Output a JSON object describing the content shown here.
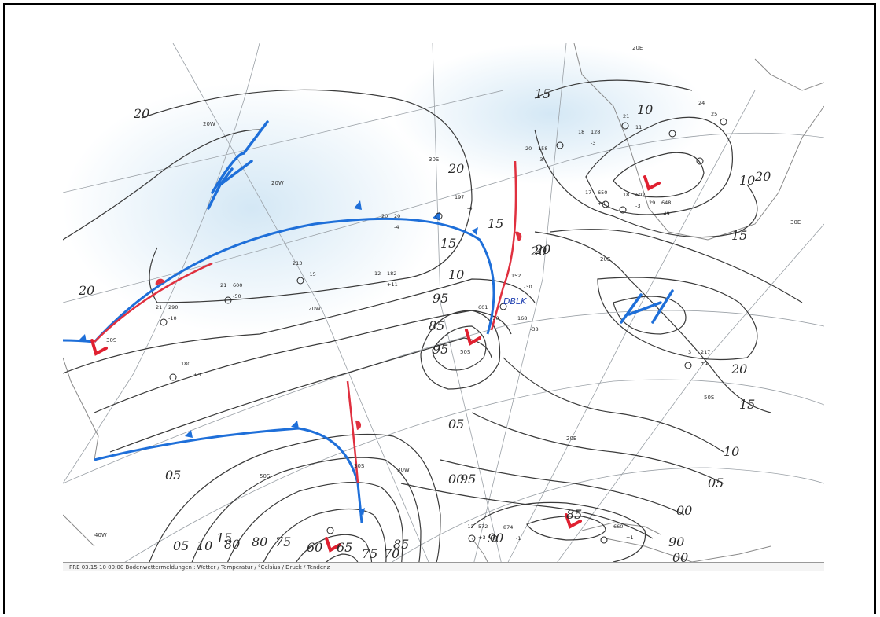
{
  "map": {
    "footer_text": "PRE 03.15 10 00:00 Bodenwettermeldungen : Wetter / Temperatur / °Celsius / Druck / Tendenz",
    "colors": {
      "cold_front": "#1e6fd9",
      "warm_front": "#e0303f",
      "low_marker": "#e02030",
      "high_marker": "#1e6fd9",
      "isobar": "#3a3a3a",
      "grid": "#9aa0a6",
      "land": "#8a8a8a",
      "shade": "#d8ebf6"
    },
    "grid_labels": [
      "20W",
      "20W",
      "20W",
      "30W",
      "40W",
      "30S",
      "30S",
      "30S",
      "50S",
      "50S",
      "50S",
      "20E",
      "20E",
      "20E",
      "30E"
    ],
    "isobar_labels": [
      "20",
      "20",
      "20",
      "20",
      "20",
      "20",
      "15",
      "15",
      "15",
      "15",
      "15",
      "10",
      "10",
      "10",
      "10",
      "05",
      "05",
      "05",
      "00",
      "00",
      "00",
      "95",
      "95",
      "95",
      "90",
      "90",
      "85",
      "85",
      "85",
      "80",
      "80",
      "75",
      "75",
      "70",
      "65",
      "60",
      "05",
      "10",
      "15",
      "20"
    ],
    "pressure_centers": [
      {
        "type": "low",
        "symbol": "L"
      },
      {
        "type": "low",
        "symbol": "L"
      },
      {
        "type": "low",
        "symbol": "L"
      },
      {
        "type": "low",
        "symbol": "L"
      },
      {
        "type": "low",
        "symbol": "L"
      },
      {
        "type": "high",
        "symbol": "H"
      },
      {
        "type": "high",
        "symbol": "H"
      }
    ],
    "annotation": "DBLK",
    "stations": [
      {
        "lines": [
          "21",
          "290"
        ],
        "extra": "-10"
      },
      {
        "lines": [
          "21",
          "600"
        ],
        "extra": "-50"
      },
      {
        "lines": [
          "213"
        ],
        "extra": "+15"
      },
      {
        "lines": [
          "12",
          "182"
        ],
        "extra": "+11"
      },
      {
        "lines": [
          "20",
          "20"
        ],
        "extra": "-4"
      },
      {
        "lines": [
          "197"
        ],
        "extra": "-4"
      },
      {
        "lines": [
          "180"
        ],
        "extra": "+3"
      },
      {
        "lines": [
          "152"
        ],
        "extra": "-30"
      },
      {
        "lines": [
          "601"
        ],
        "extra": "-30"
      },
      {
        "lines": [
          "168"
        ],
        "extra": "-38"
      },
      {
        "lines": [
          "3",
          "217"
        ],
        "extra": "+1"
      },
      {
        "lines": [
          "18",
          "128"
        ],
        "extra": "-3"
      },
      {
        "lines": [
          "20",
          "158"
        ],
        "extra": "-3"
      },
      {
        "lines": [
          "21"
        ],
        "extra": "11"
      },
      {
        "lines": [
          "24"
        ],
        "extra": "25"
      },
      {
        "lines": [
          "17",
          "650"
        ],
        "extra": "+4"
      },
      {
        "lines": [
          "18",
          "602"
        ],
        "extra": "-3"
      },
      {
        "lines": [
          "29",
          "648"
        ],
        "extra": "-49"
      },
      {
        "lines": [
          "-12",
          "572"
        ],
        "extra": "+3"
      },
      {
        "lines": [
          "874"
        ],
        "extra": "-1"
      },
      {
        "lines": [
          "660"
        ],
        "extra": "+1"
      }
    ]
  }
}
